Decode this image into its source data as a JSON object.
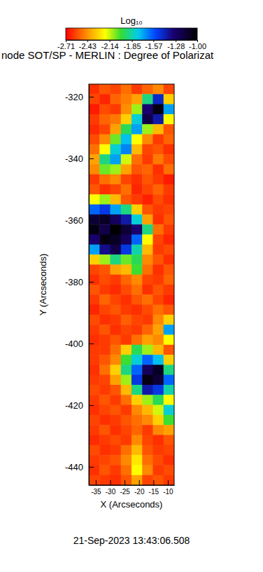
{
  "chart_data": {
    "type": "heatmap",
    "title": "node SOT/SP - MERLIN : Degree of Polarizat",
    "xlabel": "X (Arcseconds)",
    "ylabel": "Y (Arcseconds)",
    "annotations": [
      "21-Sep-2023 13:43:06.508"
    ],
    "xlim": [
      -37.4,
      -7.8
    ],
    "ylim": [
      -445.9,
      -315.9
    ],
    "xticks": [
      -35,
      -30,
      -25,
      -20,
      -15,
      -10
    ],
    "yticks": [
      -320,
      -340,
      -360,
      -380,
      -400,
      -420,
      -440
    ],
    "x_edges": [
      -37.4,
      -33.7,
      -30.0,
      -26.3,
      -22.6,
      -18.9,
      -15.2,
      -11.5,
      -7.8
    ],
    "y_edges": [
      -315.9,
      -319.15,
      -322.4,
      -325.65,
      -328.9,
      -332.15,
      -335.4,
      -338.65,
      -341.9,
      -345.15,
      -348.4,
      -351.65,
      -354.9,
      -358.15,
      -361.4,
      -364.65,
      -367.9,
      -371.15,
      -374.4,
      -377.65,
      -380.9,
      -384.15,
      -387.4,
      -390.65,
      -393.9,
      -397.15,
      -400.4,
      -403.65,
      -406.9,
      -410.15,
      -413.4,
      -416.65,
      -419.9,
      -423.15,
      -426.4,
      -429.65,
      -432.9,
      -436.15,
      -439.4,
      -442.65,
      -445.9
    ],
    "z": [
      [
        -2.62,
        -2.55,
        -2.58,
        -2.5,
        -2.6,
        -2.52,
        -2.45,
        -2.58
      ],
      [
        -2.58,
        -2.64,
        -2.52,
        -2.47,
        -2.4,
        -1.9,
        -1.45,
        -2.3
      ],
      [
        -2.66,
        -2.57,
        -2.6,
        -2.44,
        -2.1,
        -1.3,
        -1.05,
        -1.7
      ],
      [
        -2.6,
        -2.52,
        -2.48,
        -2.3,
        -1.8,
        -1.2,
        -1.4,
        -2.2
      ],
      [
        -2.63,
        -2.58,
        -2.4,
        -1.95,
        -1.7,
        -2.1,
        -2.35,
        -2.55
      ],
      [
        -2.57,
        -2.45,
        -2.05,
        -1.75,
        -2.2,
        -2.45,
        -2.6,
        -2.52
      ],
      [
        -2.5,
        -2.2,
        -1.8,
        -1.65,
        -2.35,
        -2.58,
        -2.55,
        -2.62
      ],
      [
        -2.4,
        -1.9,
        -1.7,
        -2.15,
        -2.5,
        -2.6,
        -2.48,
        -2.57
      ],
      [
        -2.45,
        -2.05,
        -2.1,
        -2.4,
        -2.55,
        -2.52,
        -2.62,
        -2.5
      ],
      [
        -2.6,
        -2.5,
        -2.45,
        -2.58,
        -2.62,
        -2.55,
        -2.6,
        -2.66
      ],
      [
        -2.55,
        -2.62,
        -2.58,
        -2.5,
        -2.64,
        -2.58,
        -2.52,
        -2.6
      ],
      [
        -2.2,
        -2.1,
        -2.35,
        -2.55,
        -2.6,
        -2.65,
        -2.57,
        -2.62
      ],
      [
        -1.6,
        -1.5,
        -1.7,
        -1.9,
        -2.3,
        -2.55,
        -2.6,
        -2.58
      ],
      [
        -1.15,
        -1.1,
        -1.25,
        -1.4,
        -1.8,
        -2.4,
        -2.62,
        -2.55
      ],
      [
        -1.05,
        -1.2,
        -1.0,
        -1.15,
        -1.3,
        -1.9,
        -2.5,
        -2.6
      ],
      [
        -1.3,
        -1.05,
        -1.1,
        -1.25,
        -1.6,
        -2.2,
        -2.58,
        -2.64
      ],
      [
        -1.7,
        -1.35,
        -1.2,
        -1.5,
        -1.85,
        -2.35,
        -2.6,
        -2.57
      ],
      [
        -2.3,
        -2.1,
        -1.9,
        -2.05,
        -1.95,
        -2.45,
        -2.55,
        -2.62
      ],
      [
        -2.58,
        -2.55,
        -2.4,
        -2.35,
        -2.0,
        -2.5,
        -2.62,
        -2.55
      ],
      [
        -2.62,
        -2.57,
        -2.6,
        -2.52,
        -2.45,
        -2.58,
        -2.6,
        -2.52
      ],
      [
        -2.55,
        -2.6,
        -2.63,
        -2.57,
        -2.5,
        -2.62,
        -2.55,
        -2.6
      ],
      [
        -2.6,
        -2.52,
        -2.58,
        -2.62,
        -2.55,
        -2.5,
        -2.58,
        -2.64
      ],
      [
        -2.64,
        -2.58,
        -2.55,
        -2.6,
        -2.62,
        -2.57,
        -2.5,
        -2.55
      ],
      [
        -2.57,
        -2.62,
        -2.6,
        -2.53,
        -2.58,
        -2.6,
        -2.45,
        -2.3
      ],
      [
        -2.6,
        -2.55,
        -2.62,
        -2.58,
        -2.6,
        -2.52,
        -2.4,
        -1.7
      ],
      [
        -2.62,
        -2.6,
        -2.55,
        -2.6,
        -2.5,
        -2.4,
        -2.45,
        -2.2
      ],
      [
        -2.6,
        -2.6,
        -2.5,
        -2.3,
        -1.95,
        -2.1,
        -2.35,
        -2.55
      ],
      [
        -2.6,
        -2.55,
        -2.45,
        -2.0,
        -1.8,
        -1.6,
        -1.75,
        -2.3
      ],
      [
        -2.62,
        -2.5,
        -2.3,
        -1.9,
        -1.6,
        -1.25,
        -1.1,
        -1.9
      ],
      [
        -2.6,
        -2.58,
        -2.4,
        -2.1,
        -1.5,
        -1.05,
        -1.15,
        -1.6
      ],
      [
        -2.57,
        -2.6,
        -2.55,
        -2.35,
        -1.9,
        -1.4,
        -1.5,
        -1.85
      ],
      [
        -2.6,
        -2.55,
        -2.6,
        -2.5,
        -2.3,
        -2.1,
        -1.95,
        -2.2
      ],
      [
        -2.62,
        -2.58,
        -2.55,
        -2.6,
        -2.45,
        -2.35,
        -2.15,
        -1.8
      ],
      [
        -2.58,
        -2.62,
        -2.6,
        -2.55,
        -2.5,
        -2.45,
        -2.3,
        -2.0
      ],
      [
        -2.6,
        -2.55,
        -2.62,
        -2.58,
        -2.52,
        -2.6,
        -2.45,
        -2.4
      ],
      [
        -2.63,
        -2.6,
        -2.57,
        -2.6,
        -2.45,
        -2.58,
        -2.62,
        -2.55
      ],
      [
        -2.57,
        -2.62,
        -2.6,
        -2.5,
        -2.35,
        -2.55,
        -2.6,
        -2.58
      ],
      [
        -2.6,
        -2.58,
        -2.55,
        -2.45,
        -2.25,
        -2.5,
        -2.57,
        -2.62
      ],
      [
        -2.62,
        -2.55,
        -2.6,
        -2.5,
        -2.2,
        -2.45,
        -2.6,
        -2.57
      ],
      [
        -2.58,
        -2.6,
        -2.62,
        -2.55,
        -2.4,
        -2.58,
        -2.55,
        -2.6
      ]
    ],
    "colorbar": {
      "label": "Log₁₀",
      "range": [
        -2.71,
        -1.0
      ],
      "ticks": [
        -2.71,
        -2.43,
        -2.14,
        -1.85,
        -1.57,
        -1.28,
        {
          "value": -1.0,
          "label": "-1.00"
        }
      ]
    }
  }
}
